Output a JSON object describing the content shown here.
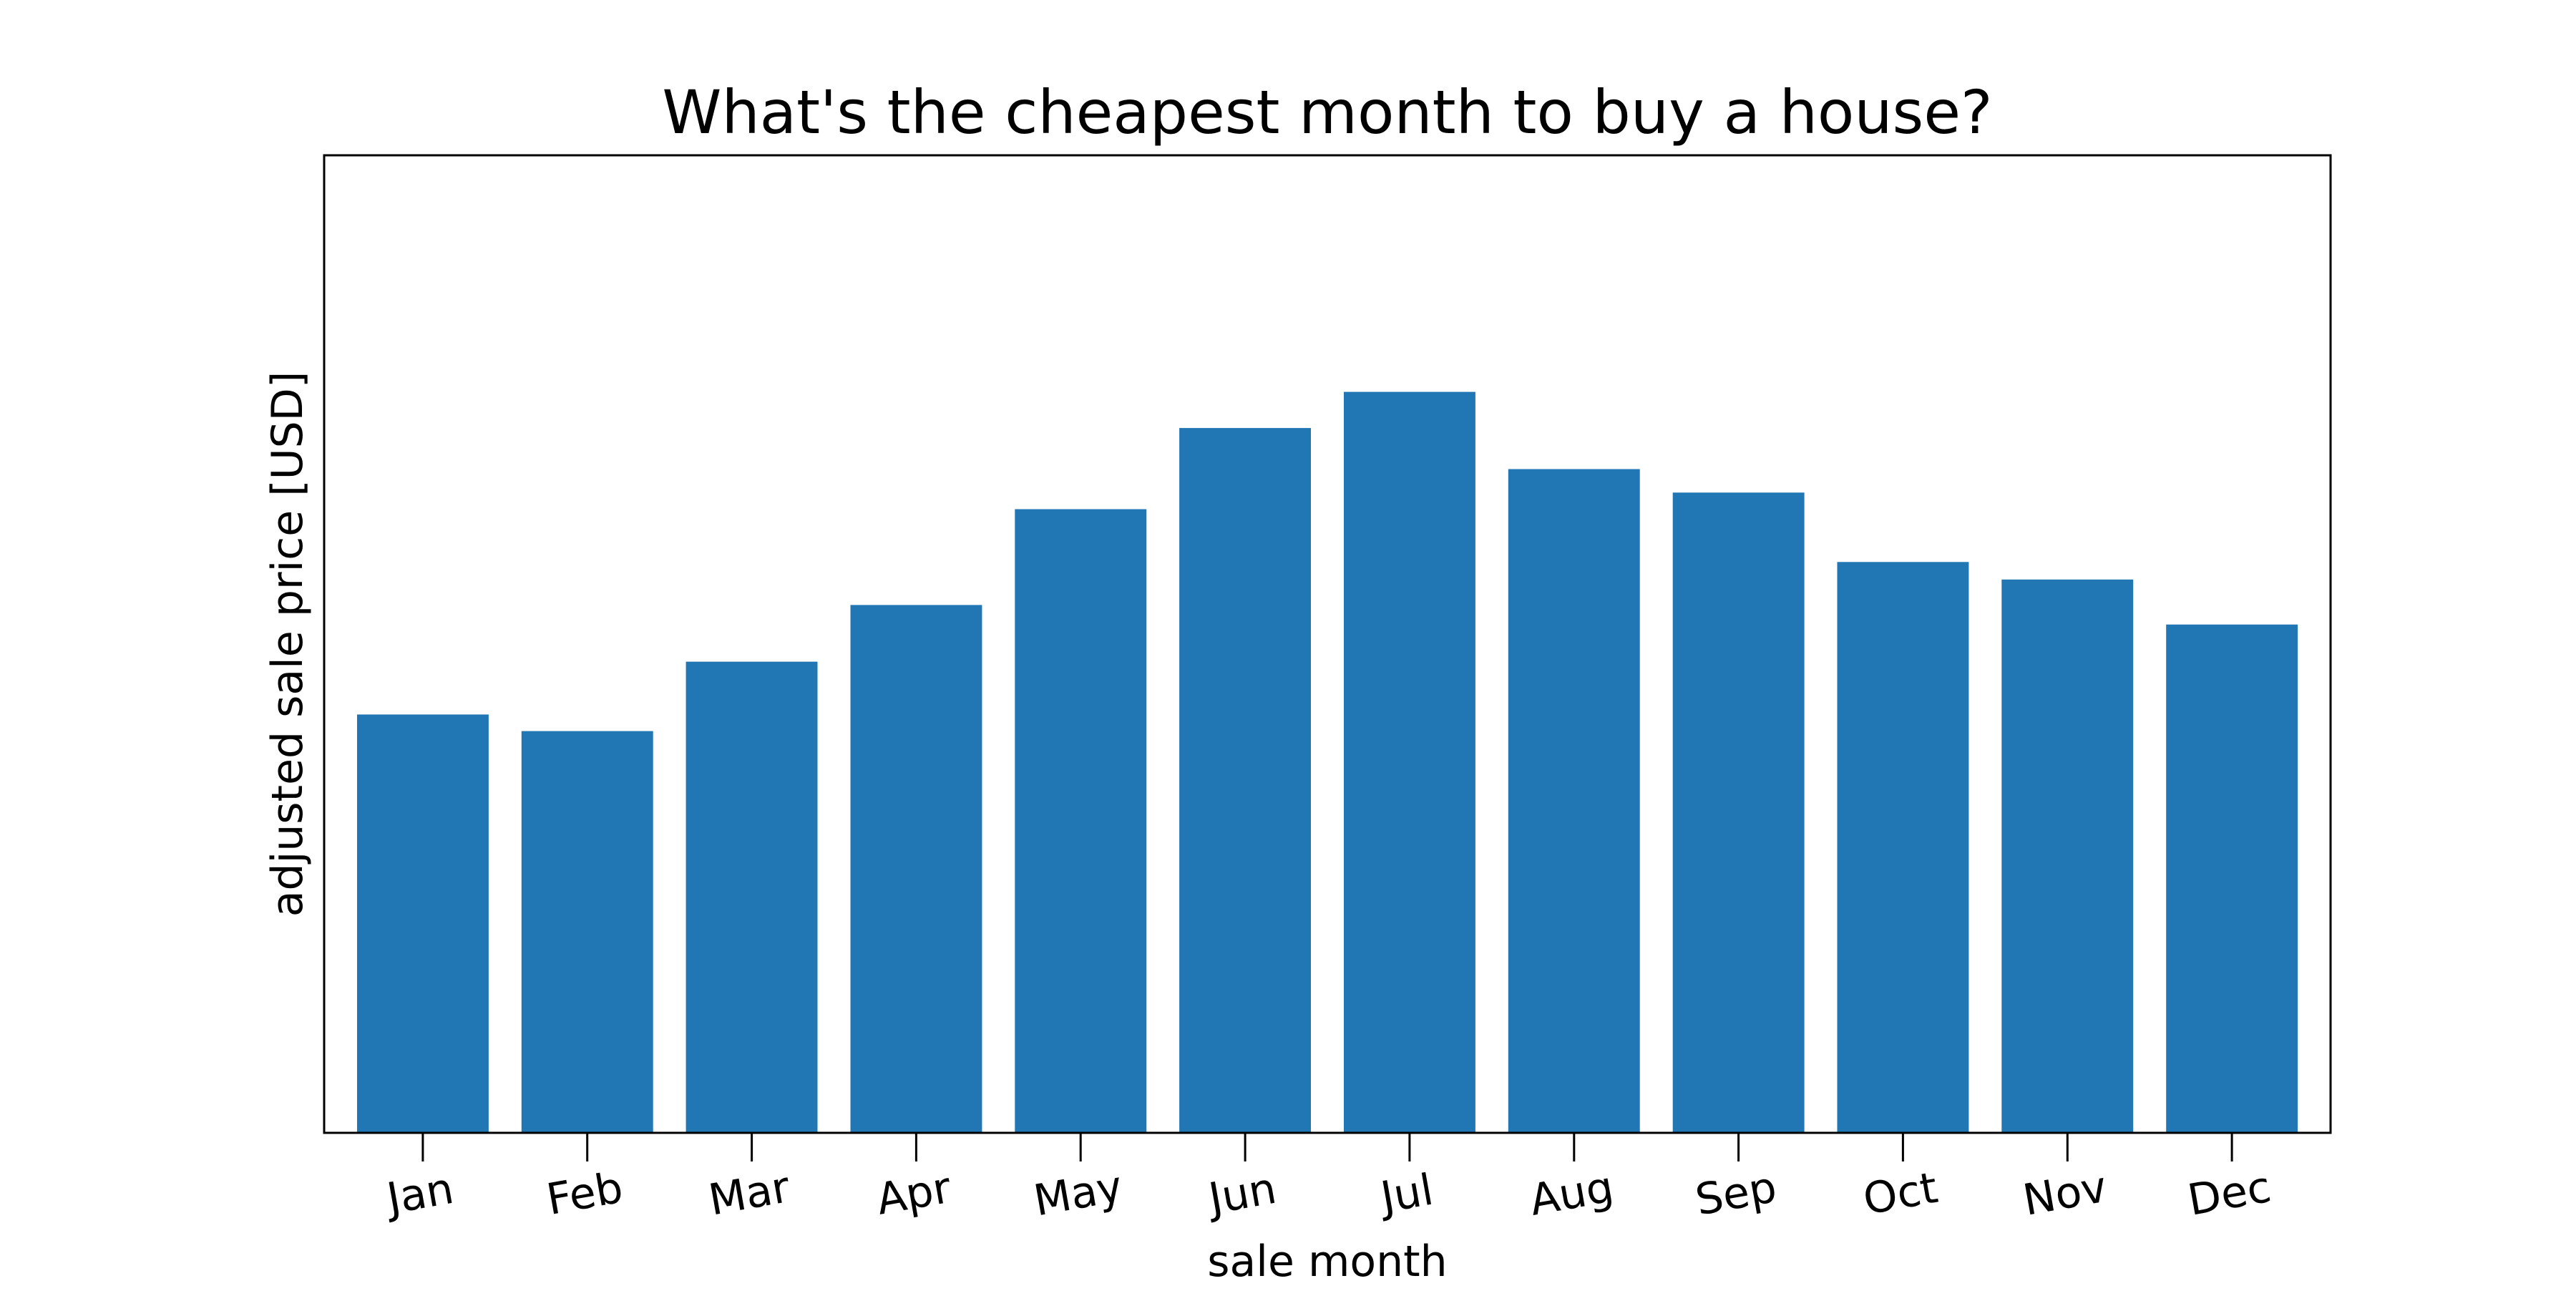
{
  "chart_data": {
    "type": "bar",
    "title": "What's the cheapest month to buy a house?",
    "xlabel": "sale month",
    "ylabel": "adjusted sale price [USD]",
    "categories": [
      "Jan",
      "Feb",
      "Mar",
      "Apr",
      "May",
      "Jun",
      "Jul",
      "Aug",
      "Sep",
      "Oct",
      "Nov",
      "Dec"
    ],
    "values": [
      42.8,
      41.1,
      48.2,
      54.0,
      63.8,
      72.1,
      75.8,
      67.9,
      65.5,
      58.4,
      56.6,
      52.0
    ],
    "ylim": [
      0,
      100
    ],
    "y_tick_labels_shown": false,
    "grid": false,
    "bar_color": "#2077b4",
    "axes_color": "#000000",
    "background": "#ffffff"
  }
}
